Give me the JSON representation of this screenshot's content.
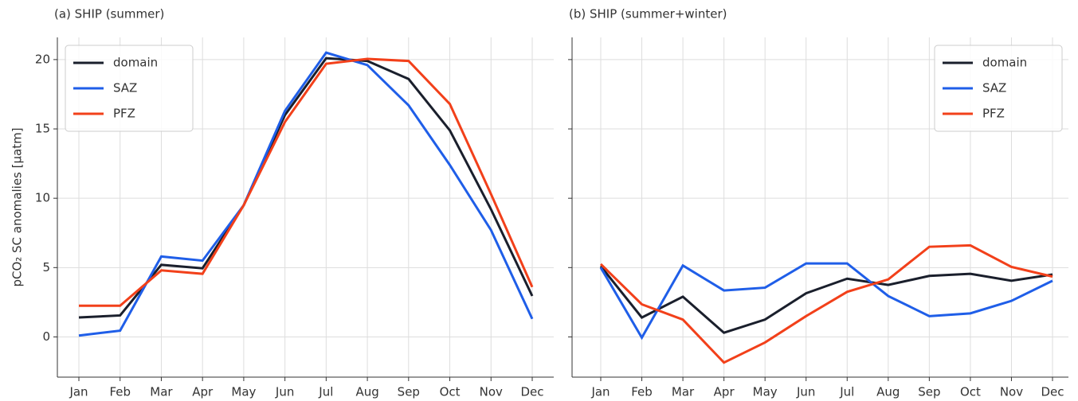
{
  "chart_data": [
    {
      "type": "line",
      "title": "(a)  SHIP (summer)",
      "ylabel": "pCO₂ SC anomalies [μatm]",
      "categories": [
        "Jan",
        "Feb",
        "Mar",
        "Apr",
        "May",
        "Jun",
        "Jul",
        "Aug",
        "Sep",
        "Oct",
        "Nov",
        "Dec"
      ],
      "series": [
        {
          "name": "domain",
          "color": "#1a1f2c",
          "values": [
            1.4,
            1.55,
            5.2,
            4.95,
            9.5,
            16.0,
            20.1,
            19.9,
            18.6,
            14.9,
            9.2,
            2.95
          ]
        },
        {
          "name": "SAZ",
          "color": "#1f5ee8",
          "values": [
            0.1,
            0.45,
            5.8,
            5.5,
            9.5,
            16.3,
            20.5,
            19.6,
            16.7,
            12.4,
            7.7,
            1.3
          ]
        },
        {
          "name": "PFZ",
          "color": "#f2401a",
          "values": [
            2.25,
            2.25,
            4.8,
            4.55,
            9.5,
            15.5,
            19.7,
            20.05,
            19.9,
            16.8,
            10.3,
            3.6
          ]
        }
      ],
      "ylim": [
        -2.9,
        21.6
      ],
      "yticks": [
        0,
        5,
        10,
        15,
        20
      ],
      "show_ytick_labels": true,
      "grid": true,
      "legend": "upper left"
    },
    {
      "type": "line",
      "title": "(b)  SHIP (summer+winter)",
      "categories": [
        "Jan",
        "Feb",
        "Mar",
        "Apr",
        "May",
        "Jun",
        "Jul",
        "Aug",
        "Sep",
        "Oct",
        "Nov",
        "Dec"
      ],
      "series": [
        {
          "name": "domain",
          "color": "#1a1f2c",
          "values": [
            5.1,
            1.4,
            2.9,
            0.3,
            1.25,
            3.15,
            4.2,
            3.75,
            4.4,
            4.55,
            4.05,
            4.5
          ]
        },
        {
          "name": "SAZ",
          "color": "#1f5ee8",
          "values": [
            5.0,
            -0.05,
            5.15,
            3.35,
            3.55,
            5.3,
            5.3,
            2.95,
            1.5,
            1.7,
            2.6,
            4.05
          ]
        },
        {
          "name": "PFZ",
          "color": "#f2401a",
          "values": [
            5.25,
            2.35,
            1.25,
            -1.85,
            -0.4,
            1.5,
            3.25,
            4.15,
            6.5,
            6.6,
            5.05,
            4.35
          ]
        }
      ],
      "ylim": [
        -2.9,
        21.6
      ],
      "yticks": [
        0,
        5,
        10,
        15,
        20
      ],
      "show_ytick_labels": false,
      "grid": true,
      "legend": "upper right"
    }
  ]
}
